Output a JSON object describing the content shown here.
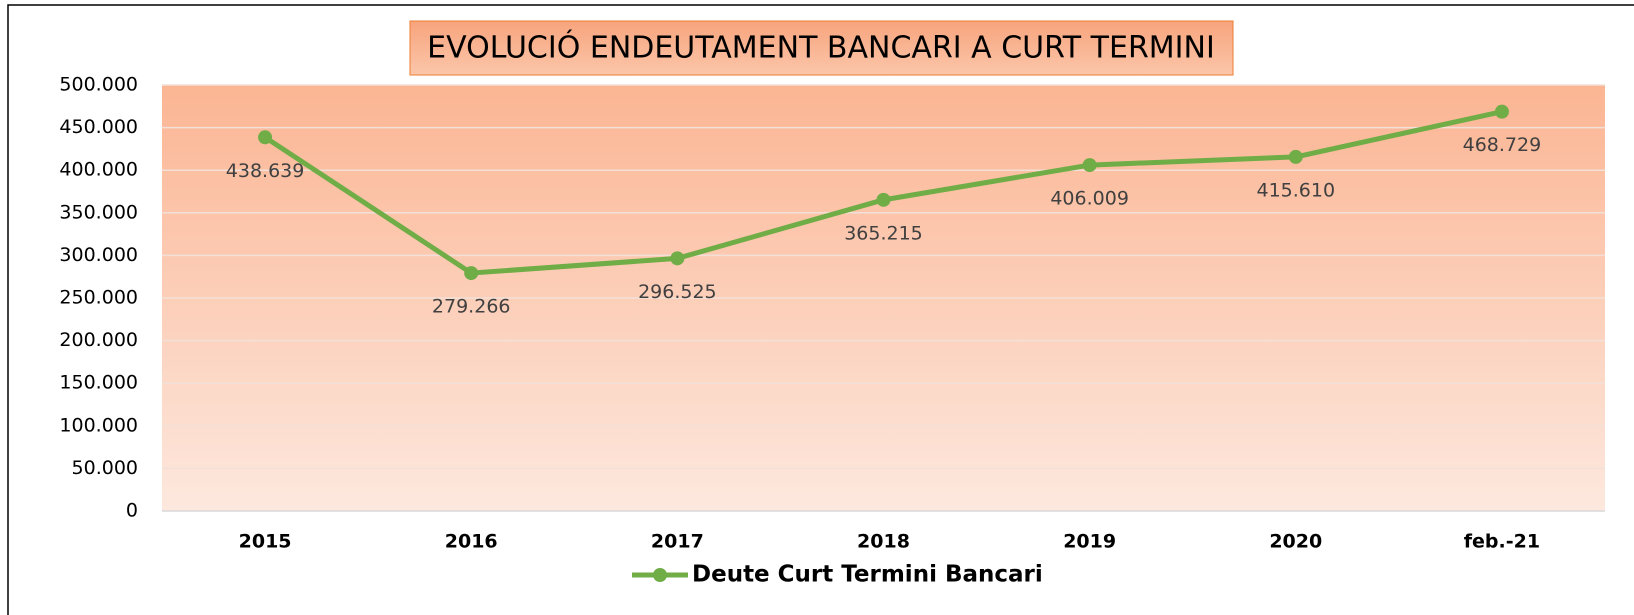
{
  "chart_data": {
    "type": "line",
    "title": "EVOLUCIÓ ENDEUTAMENT BANCARI A CURT TERMINI",
    "categories": [
      "2015",
      "2016",
      "2017",
      "2018",
      "2019",
      "2020",
      "feb.-21"
    ],
    "series": [
      {
        "name": "Deute Curt Termini Bancari",
        "color": "#70ad47",
        "values": [
          438639,
          279266,
          296525,
          365215,
          406009,
          415610,
          468729
        ],
        "value_labels": [
          "438.639",
          "279.266",
          "296.525",
          "365.215",
          "406.009",
          "415.610",
          "468.729"
        ]
      }
    ],
    "ylim": [
      0,
      500000
    ],
    "yticks": [
      0,
      {
        "value": 50000,
        "label": "50.000"
      },
      {
        "value": 100000,
        "label": "100.000"
      },
      {
        "value": 150000,
        "label": "150.000"
      },
      {
        "value": 200000,
        "label": "200.000"
      },
      {
        "value": 250000,
        "label": "250.000"
      },
      {
        "value": 300000,
        "label": "300.000"
      },
      {
        "value": 350000,
        "label": "350.000"
      },
      {
        "value": 400000,
        "label": "400.000"
      },
      {
        "value": 450000,
        "label": "450.000"
      },
      {
        "value": 500000,
        "label": "500.000"
      }
    ],
    "grid": true,
    "legend": "bottom"
  }
}
